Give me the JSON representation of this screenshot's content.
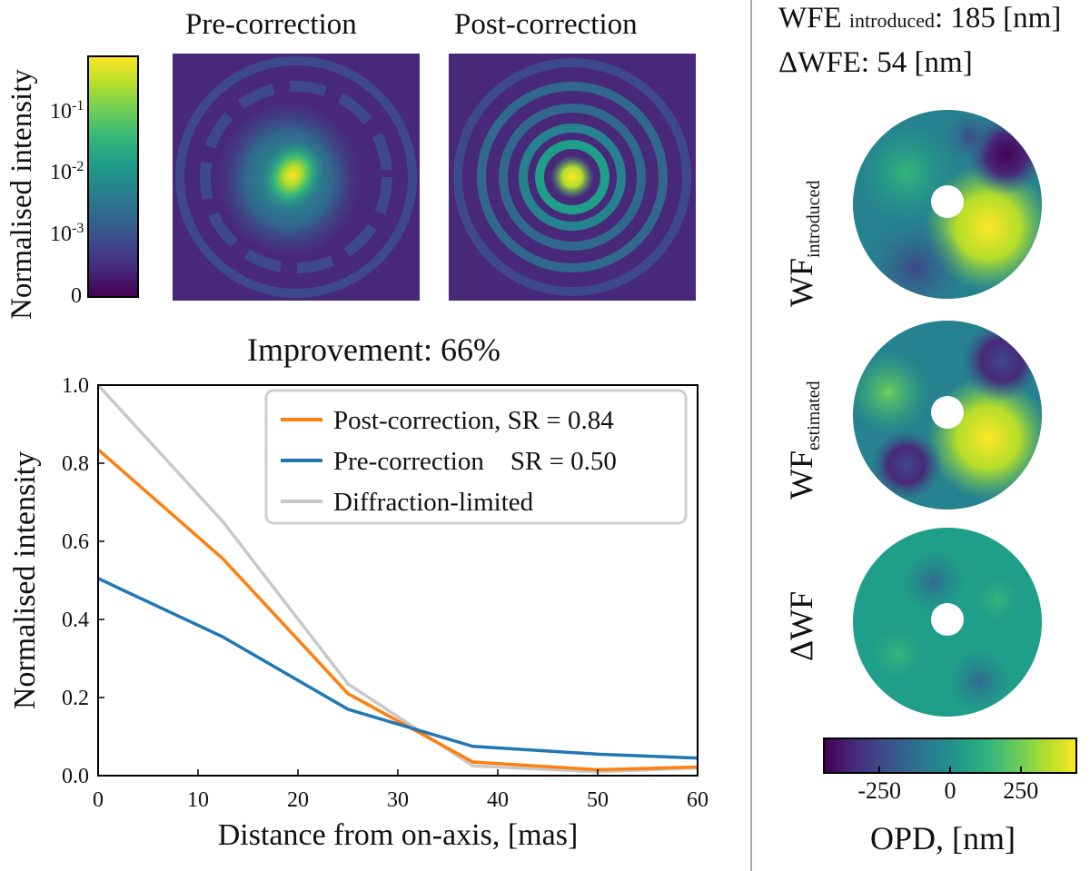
{
  "colormap": [
    "#440154",
    "#482878",
    "#3e4989",
    "#31688e",
    "#26828e",
    "#1f9e89",
    "#35b779",
    "#6ece58",
    "#b5de2b",
    "#fde725"
  ],
  "psf_panel": {
    "colorbar_label": "Normalised intensity",
    "colorbar_ticks": [
      {
        "base": "10",
        "exp": "-1"
      },
      {
        "base": "10",
        "exp": "-2"
      },
      {
        "base": "10",
        "exp": "-3"
      },
      {
        "base": "0",
        "exp": ""
      }
    ],
    "pre_title": "Pre-correction",
    "post_title": "Post-correction"
  },
  "improvement_label": "Improvement: 66%",
  "wavefront_panel": {
    "wfe_introduced_prefix": "WFE",
    "wfe_introduced_sub": "introduced",
    "wfe_introduced_value": ": 185 [nm]",
    "delta_wfe_label": "ΔWFE: 54 [nm]",
    "maps": [
      {
        "base": "WF",
        "sub": "introduced"
      },
      {
        "base": "WF",
        "sub": "estimated"
      },
      {
        "base": "ΔWF",
        "sub": ""
      }
    ],
    "colorbar_ticks": [
      "-250",
      "0",
      "250"
    ],
    "colorbar_tick_values": [
      -250,
      0,
      250
    ],
    "colorbar_range": [
      -450,
      450
    ],
    "colorbar_label": "OPD, [nm]"
  },
  "chart_data": {
    "type": "line",
    "xlabel": "Distance from on-axis, [mas]",
    "ylabel": "Normalised intensity",
    "xlim": [
      0,
      60
    ],
    "ylim": [
      0,
      1.0
    ],
    "xticks": [
      0,
      10,
      20,
      30,
      40,
      50,
      60
    ],
    "yticks": [
      0.0,
      0.2,
      0.4,
      0.6,
      0.8,
      1.0
    ],
    "legend_position": "top-right",
    "series": [
      {
        "name": "Post-correction, SR = 0.84",
        "color": "#ff7f0e",
        "x": [
          0,
          12.5,
          25,
          37.5,
          50,
          60
        ],
        "y": [
          0.835,
          0.555,
          0.21,
          0.035,
          0.015,
          0.022
        ]
      },
      {
        "name": "Pre-correction    SR = 0.50",
        "color": "#1f77b4",
        "x": [
          0,
          12.5,
          25,
          37.5,
          50,
          60
        ],
        "y": [
          0.505,
          0.355,
          0.17,
          0.075,
          0.055,
          0.045
        ]
      },
      {
        "name": "Diffraction-limited",
        "color": "#c8c8c8",
        "x": [
          0,
          12.5,
          25,
          37.5,
          50,
          60
        ],
        "y": [
          1.0,
          0.65,
          0.235,
          0.025,
          0.01,
          0.02
        ]
      }
    ]
  }
}
